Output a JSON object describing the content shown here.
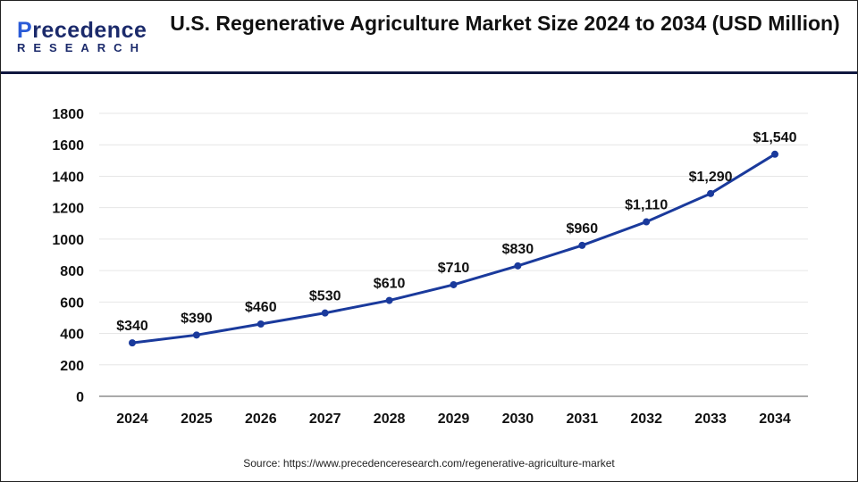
{
  "logo": {
    "name_first": "P",
    "name_rest": "recedence",
    "sub": "RESEARCH"
  },
  "title": "U.S. Regenerative Agriculture Market Size 2024 to 2034 (USD Million)",
  "source": "Source: https://www.precedenceresearch.com/regenerative-agriculture-market",
  "colors": {
    "line": "#1a3a9c",
    "grid": "#e6e6e6",
    "axis": "#aaaaaa",
    "rule": "#10173f"
  },
  "chart_data": {
    "type": "line",
    "title": "U.S. Regenerative Agriculture Market Size 2024 to 2034 (USD Million)",
    "xlabel": "",
    "ylabel": "",
    "categories": [
      "2024",
      "2025",
      "2026",
      "2027",
      "2028",
      "2029",
      "2030",
      "2031",
      "2032",
      "2033",
      "2034"
    ],
    "values": [
      340,
      390,
      460,
      530,
      610,
      710,
      830,
      960,
      1110,
      1290,
      1540
    ],
    "data_labels": [
      "$340",
      "$390",
      "$460",
      "$530",
      "$610",
      "$710",
      "$830",
      "$960",
      "$1,110",
      "$1,290",
      "$1,540"
    ],
    "yticks": [
      0,
      200,
      400,
      600,
      800,
      1000,
      1200,
      1400,
      1600,
      1800
    ],
    "ylim": [
      0,
      1800
    ],
    "grid": true,
    "legend": "none"
  }
}
